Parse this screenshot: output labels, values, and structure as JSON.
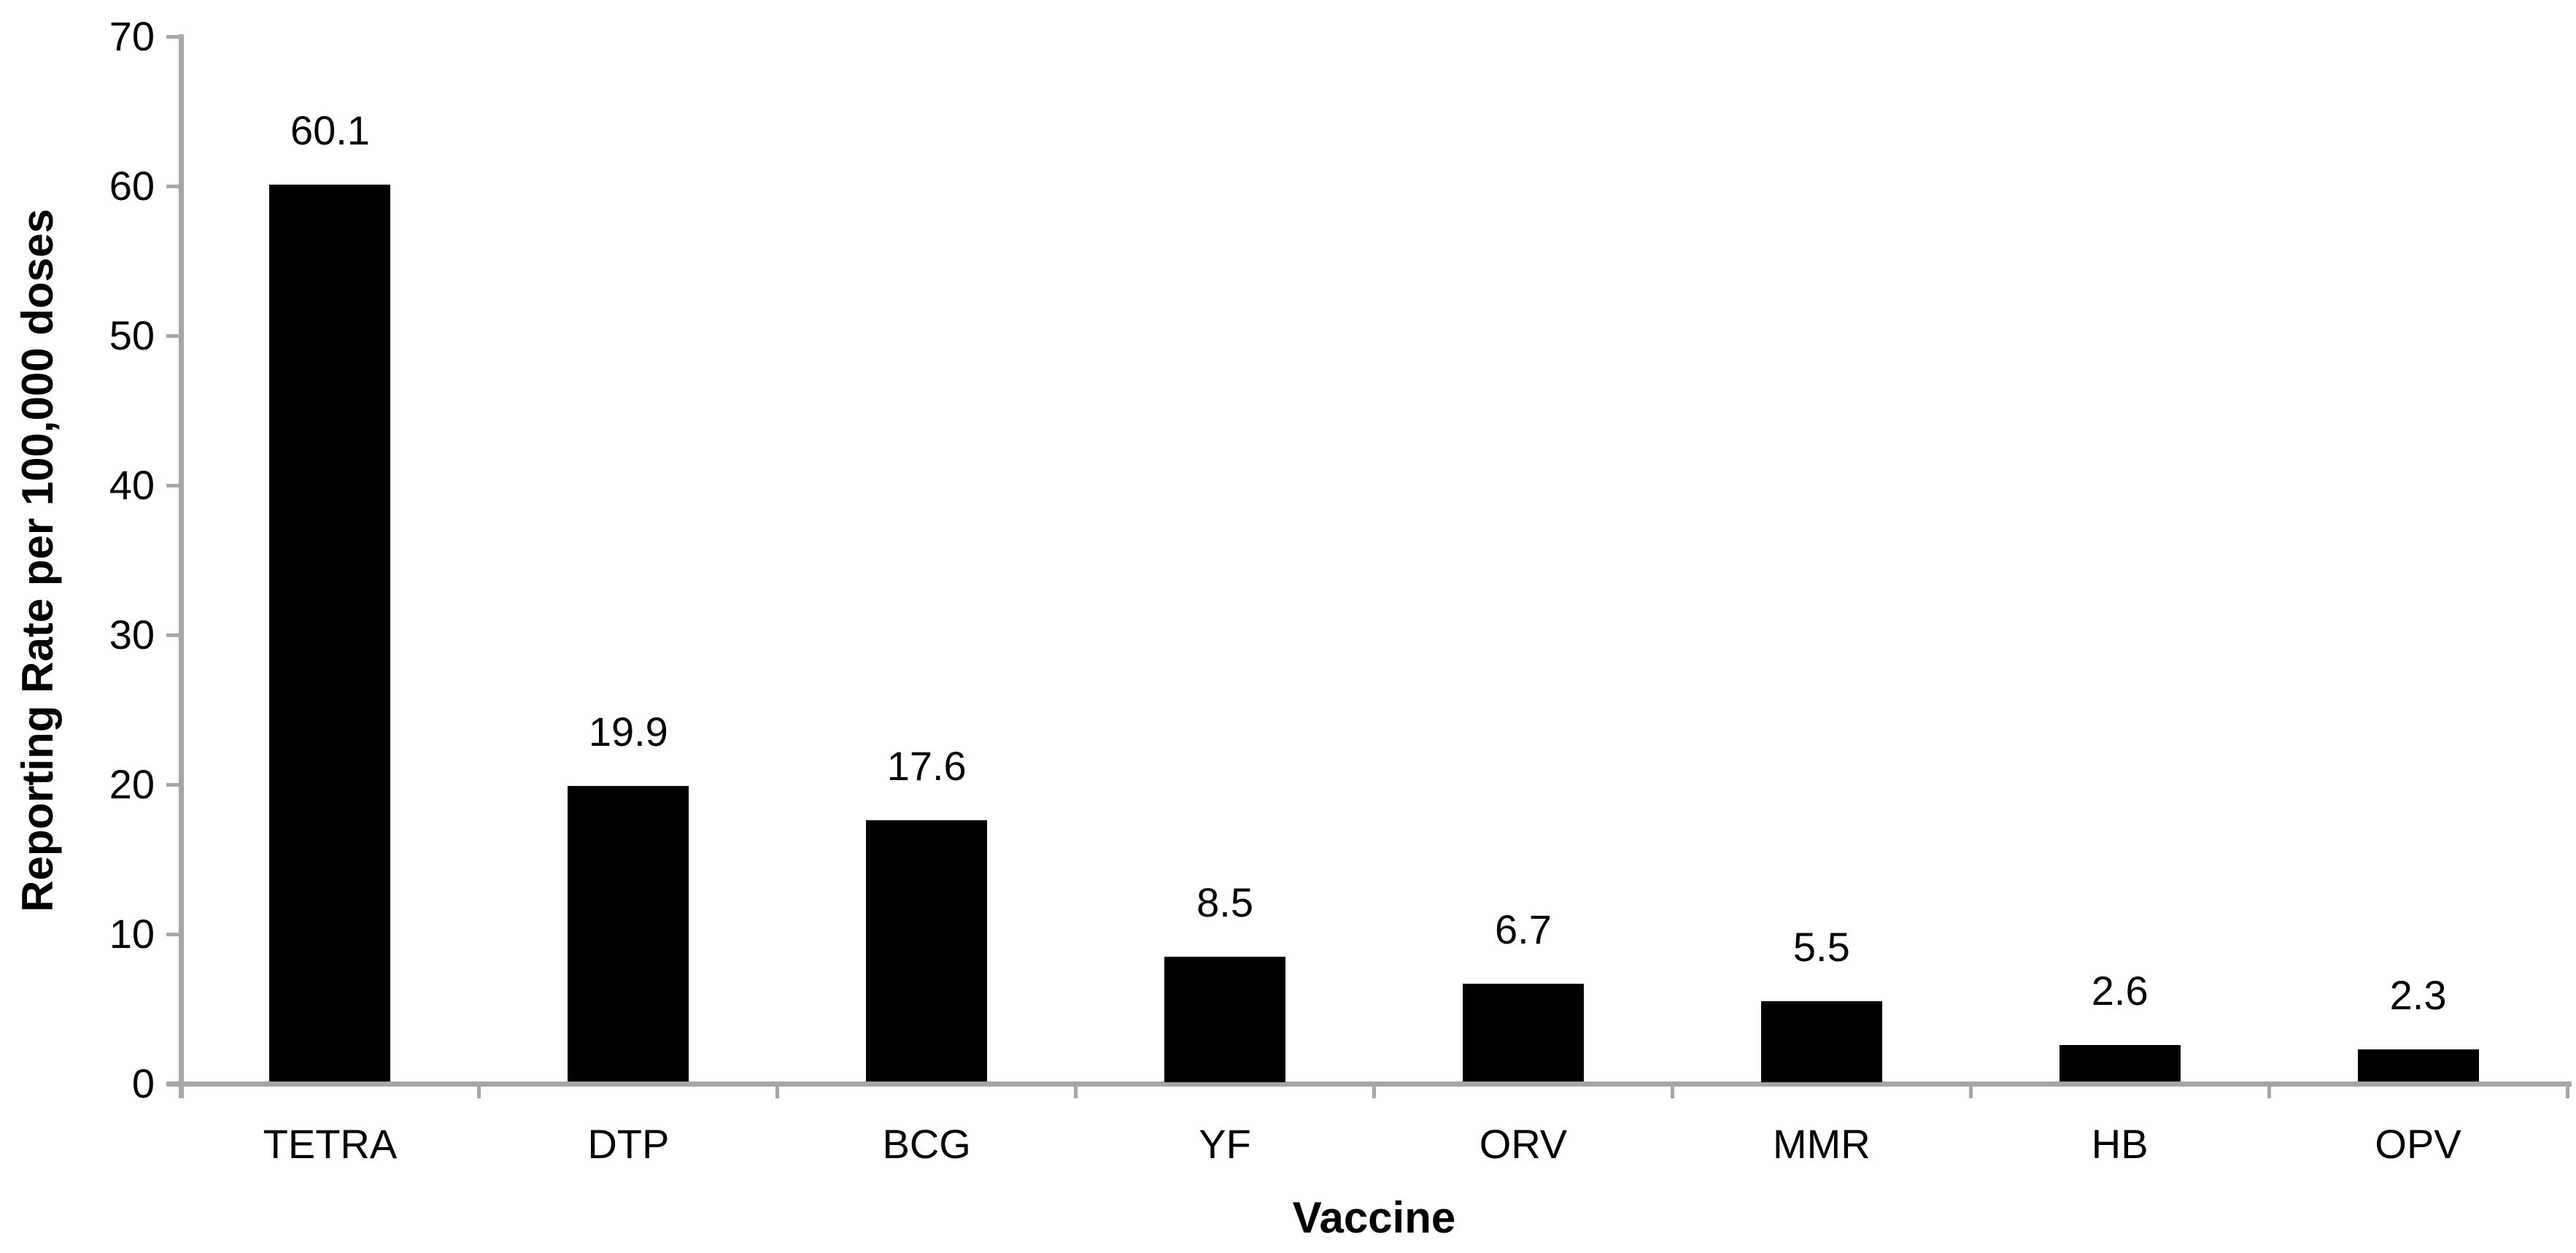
{
  "chart_data": {
    "type": "bar",
    "categories": [
      "TETRA",
      "DTP",
      "BCG",
      "YF",
      "ORV",
      "MMR",
      "HB",
      "OPV"
    ],
    "values": [
      60.1,
      19.9,
      17.6,
      8.5,
      6.7,
      5.5,
      2.6,
      2.3
    ],
    "value_labels": [
      "60.1",
      "19.9",
      "17.6",
      "8.5",
      "6.7",
      "5.5",
      "2.6",
      "2.3"
    ],
    "title": "",
    "xlabel": "Vaccine",
    "ylabel": "Reporting Rate per 100,000 doses",
    "ylim": [
      0,
      70
    ],
    "yticks": [
      0,
      10,
      20,
      30,
      40,
      50,
      60,
      70
    ],
    "grid": false,
    "legend": "none",
    "bar_color": "#000000",
    "axis_color": "#a6a6a6",
    "text_color": "#000000"
  }
}
